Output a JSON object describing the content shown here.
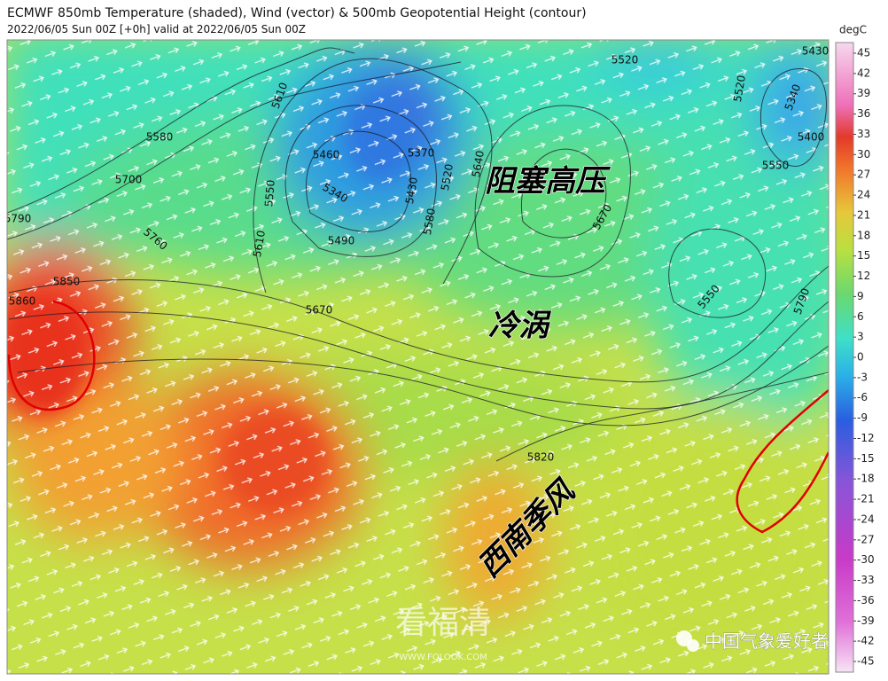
{
  "title": "ECMWF 850mb Temperature (shaded), Wind (vector) & 500mb Geopotential Height (contour)",
  "subtitle": "2022/06/05 Sun 00Z [+0h] valid at 2022/06/05 Sun 00Z",
  "colorbar": {
    "label": "degC",
    "lim": [
      -45,
      45
    ],
    "ticks": [
      45,
      42,
      39,
      36,
      33,
      30,
      27,
      24,
      21,
      18,
      15,
      12,
      9,
      6,
      3,
      0,
      -3,
      -6,
      -9,
      -12,
      -15,
      -18,
      -21,
      -24,
      -27,
      -30,
      -33,
      -36,
      -39,
      -42,
      -45
    ]
  },
  "contour_labels": [
    5610,
    5580,
    5700,
    5790,
    5460,
    5340,
    5370,
    5430,
    5520,
    5490,
    5550,
    5610,
    5580,
    5640,
    5670,
    5760,
    5670,
    5850,
    5860,
    5820,
    5520,
    5430,
    5340,
    5400,
    5550,
    5550,
    5520,
    5790
  ],
  "annotations": [
    "阻塞高压",
    "冷涡",
    "西南季风"
  ],
  "watermark": {
    "name": "看福清",
    "url": "WWW.FQLOOK.COM"
  },
  "source": "中国气象爱好者"
}
